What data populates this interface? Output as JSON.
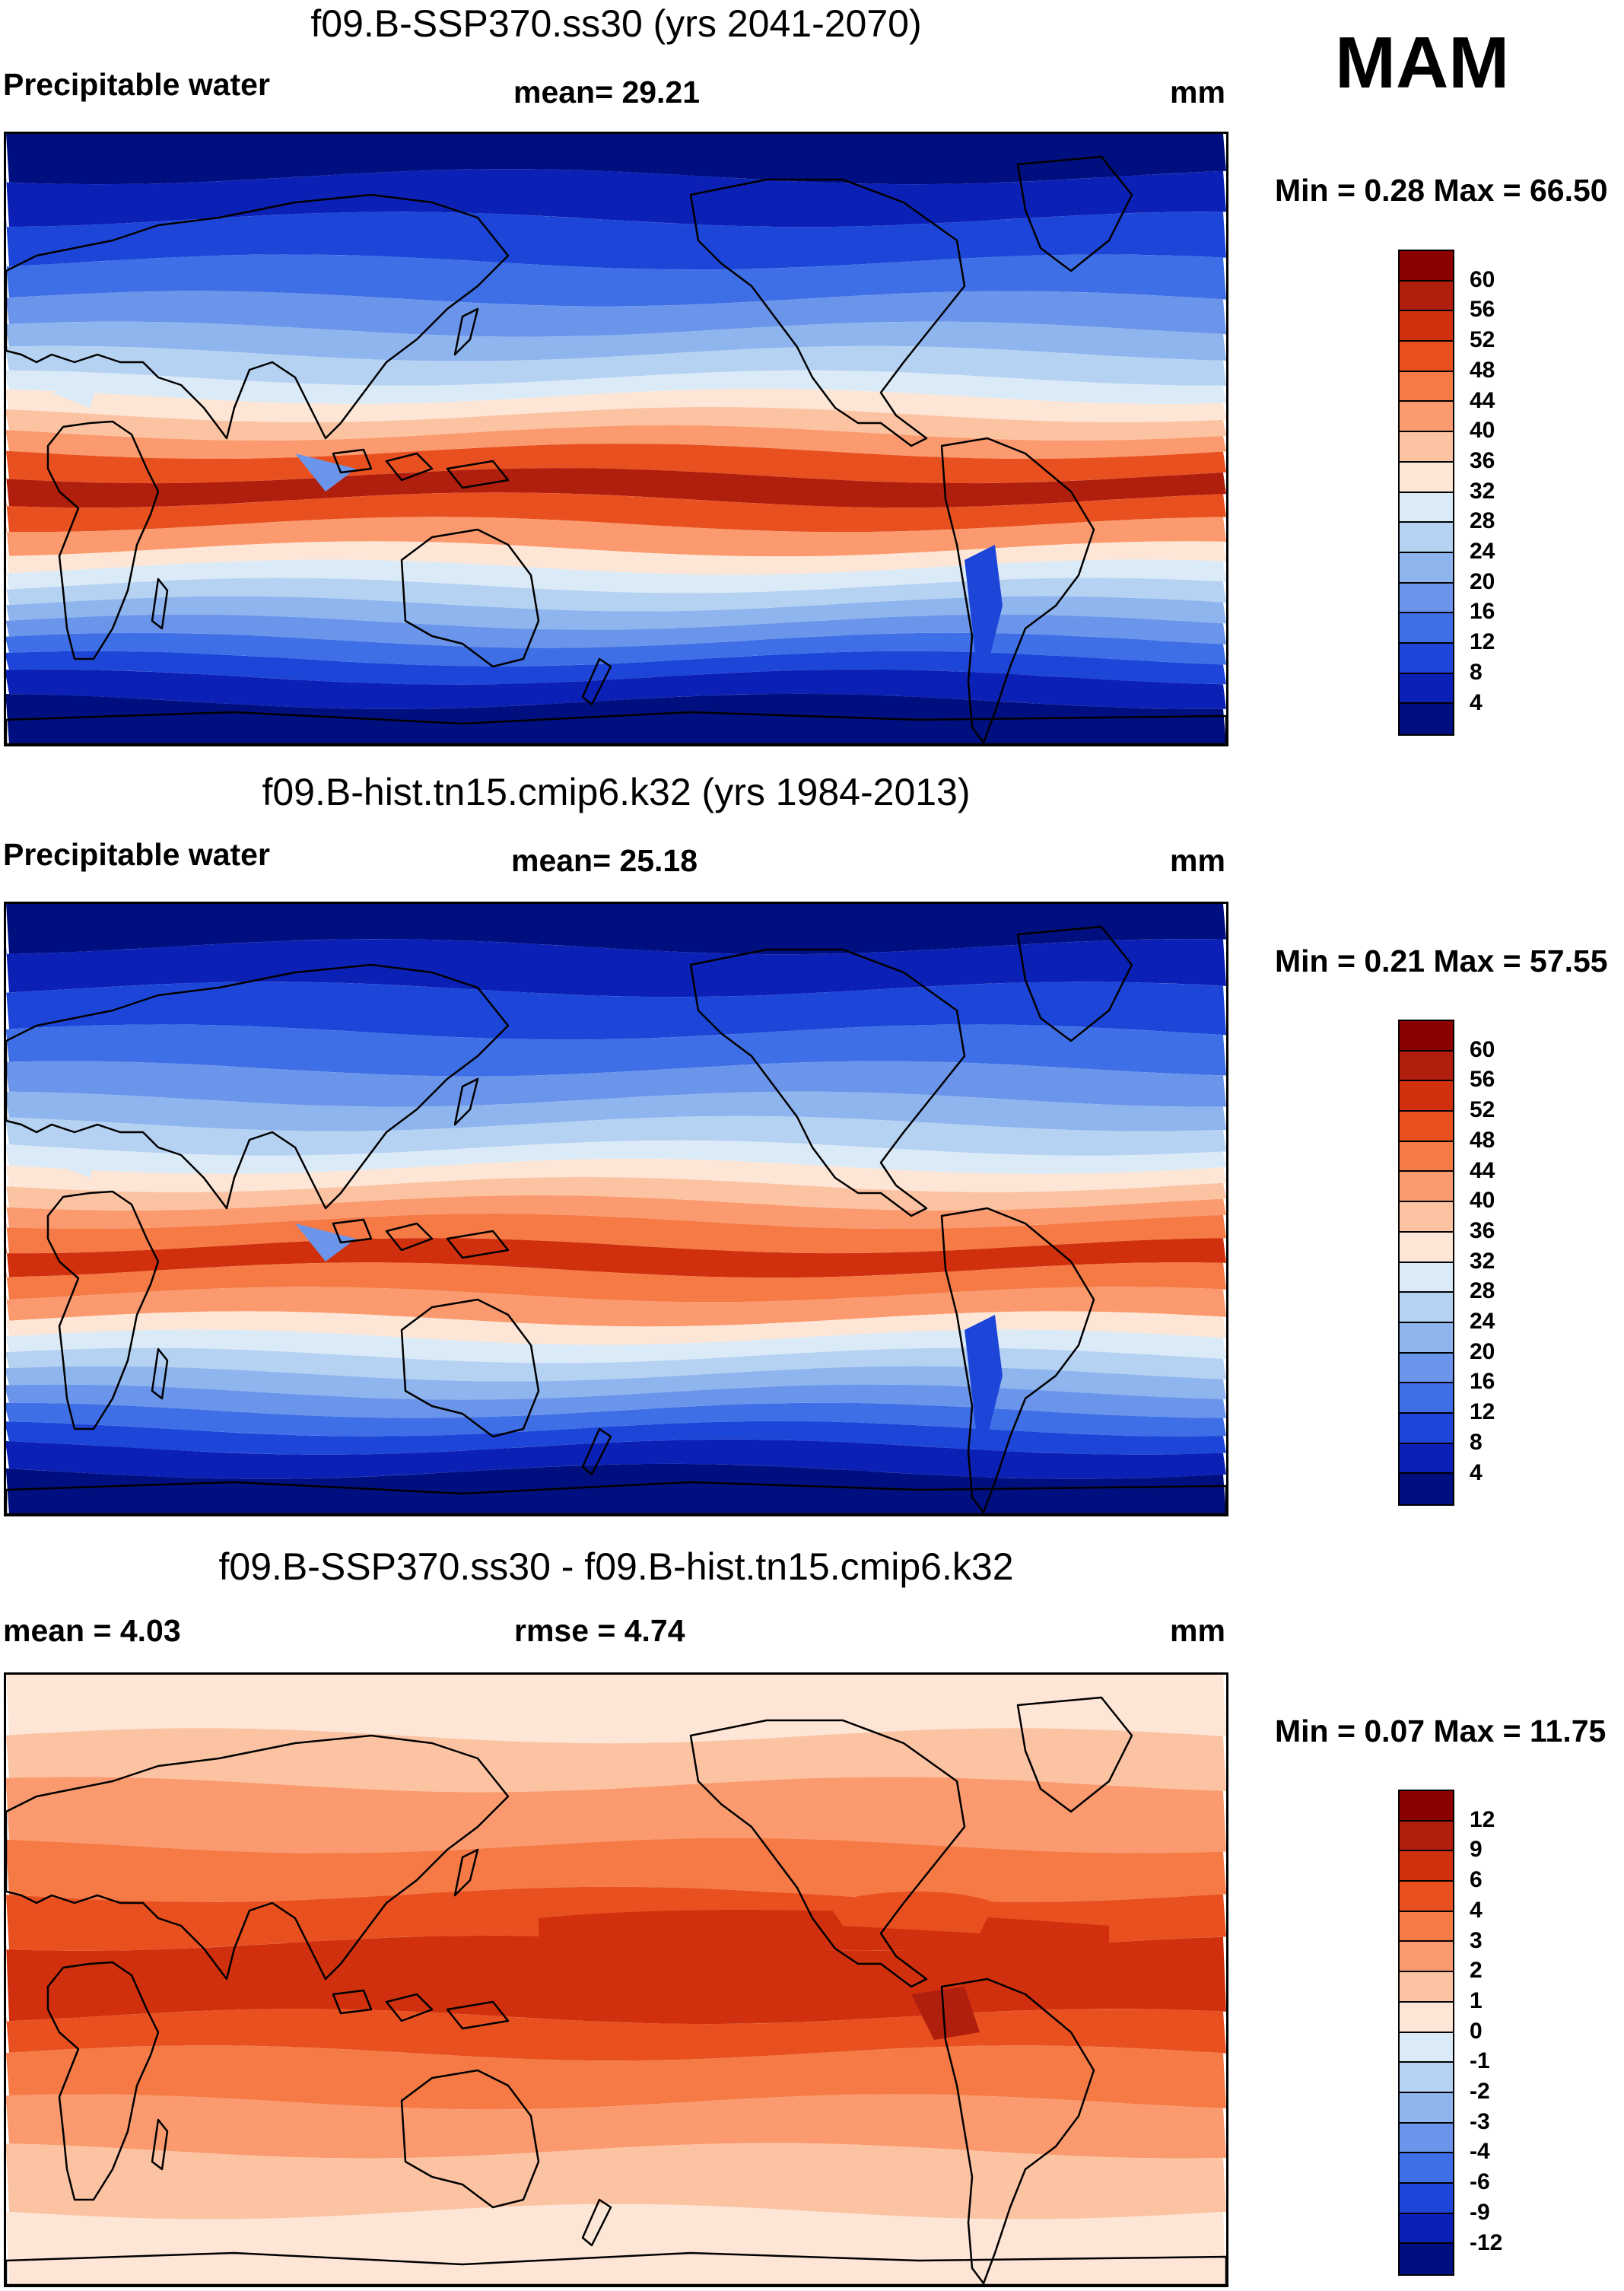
{
  "season": "MAM",
  "units": "mm",
  "panels": [
    {
      "id": "ssp370",
      "title": "f09.B-SSP370.ss30 (yrs 2041-2070)",
      "left_label": "Precipitable water",
      "center_label": "mean=  29.21",
      "right_label": "mm",
      "min_max": "Min =   0.28 Max =  66.50",
      "levels": [
        "60",
        "56",
        "52",
        "48",
        "44",
        "40",
        "36",
        "32",
        "28",
        "24",
        "20",
        "16",
        "12",
        "8",
        "4"
      ],
      "colors": [
        "#8b0000",
        "#b01e0e",
        "#d0300d",
        "#e9501f",
        "#f57a45",
        "#fa9a6e",
        "#fcc3a3",
        "#fde6d6",
        "#dbeaf7",
        "#b6d2f2",
        "#8eb5ee",
        "#6b95ea",
        "#3e6fe6",
        "#1d46d9",
        "#0b21b5",
        "#000f80"
      ],
      "map_type": "sequential"
    },
    {
      "id": "hist",
      "title": "f09.B-hist.tn15.cmip6.k32 (yrs 1984-2013)",
      "left_label": "Precipitable water",
      "center_label": "mean=  25.18",
      "right_label": "mm",
      "min_max": "Min =   0.21 Max =  57.55",
      "levels": [
        "60",
        "56",
        "52",
        "48",
        "44",
        "40",
        "36",
        "32",
        "28",
        "24",
        "20",
        "16",
        "12",
        "8",
        "4"
      ],
      "colors": [
        "#8b0000",
        "#b01e0e",
        "#d0300d",
        "#e9501f",
        "#f57a45",
        "#fa9a6e",
        "#fcc3a3",
        "#fde6d6",
        "#dbeaf7",
        "#b6d2f2",
        "#8eb5ee",
        "#6b95ea",
        "#3e6fe6",
        "#1d46d9",
        "#0b21b5",
        "#000f80"
      ],
      "map_type": "sequential_hist"
    },
    {
      "id": "diff",
      "title": "f09.B-SSP370.ss30 - f09.B-hist.tn15.cmip6.k32",
      "left_label": "mean =    4.03",
      "center_label": "rmse =    4.74",
      "right_label": "mm",
      "min_max": "Min =   0.07 Max =  11.75",
      "levels": [
        "12",
        "9",
        "6",
        "4",
        "3",
        "2",
        "1",
        "0",
        "-1",
        "-2",
        "-3",
        "-4",
        "-6",
        "-9",
        "-12"
      ],
      "colors": [
        "#8b0000",
        "#b01e0e",
        "#d0300d",
        "#e9501f",
        "#f57a45",
        "#fa9a6e",
        "#fcc3a3",
        "#fde6d6",
        "#dbeaf7",
        "#b6d2f2",
        "#8eb5ee",
        "#6b95ea",
        "#3e6fe6",
        "#1d46d9",
        "#0b21b5",
        "#000f80"
      ],
      "map_type": "difference"
    }
  ]
}
